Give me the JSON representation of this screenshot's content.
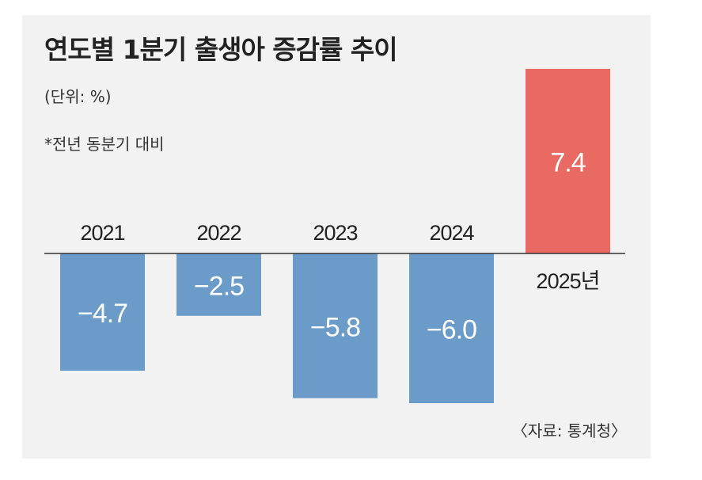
{
  "title": "연도별 1분기 출생아 증감률 추이",
  "unit_label": "(단위: %)",
  "note": "*전년 동분기 대비",
  "source": "〈자료: 통계청〉",
  "colors": {
    "negative_bar": "#6b9bc8",
    "positive_bar": "#e86a62",
    "background": "#f2f2f2",
    "text": "#222222",
    "axis": "#333333"
  },
  "chart_data": {
    "type": "bar",
    "title": "연도별 1분기 출생아 증감률 추이",
    "unit": "%",
    "categories": [
      "2021",
      "2022",
      "2023",
      "2024",
      "2025년"
    ],
    "values": [
      -4.7,
      -2.5,
      -5.8,
      -6.0,
      7.4
    ],
    "value_labels": [
      "−4.7",
      "−2.5",
      "−5.8",
      "−6.0",
      "7.4"
    ],
    "ylim": [
      -6.5,
      7.4
    ],
    "grid": false,
    "legend": "none"
  }
}
